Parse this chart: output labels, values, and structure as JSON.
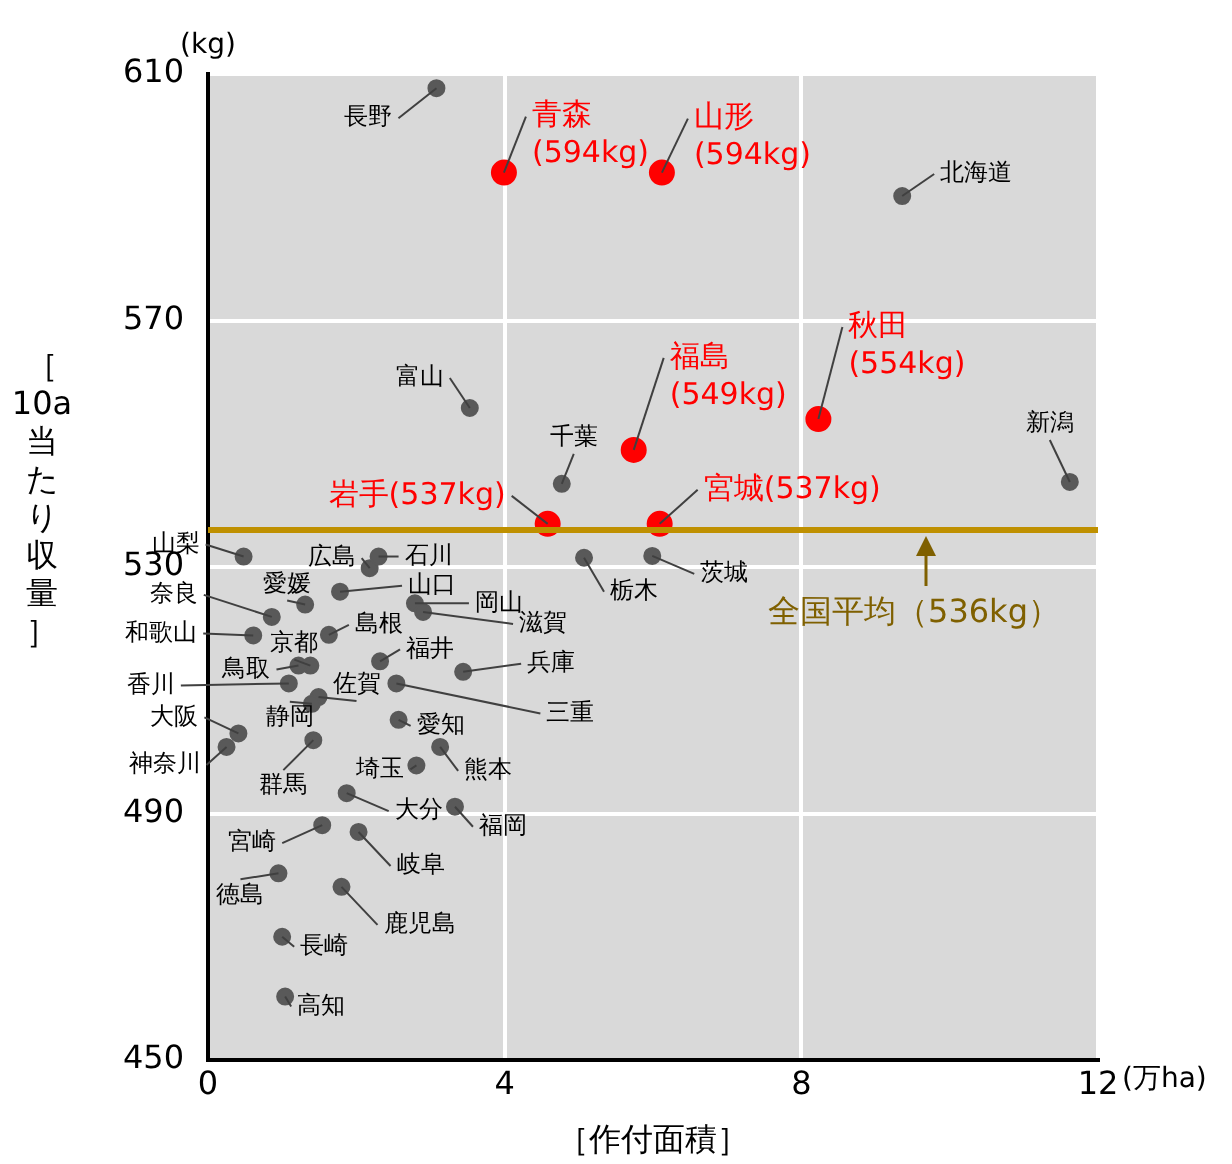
{
  "chart_data": {
    "type": "scatter",
    "xlabel": "［作付面積］",
    "ylabel": "［10a当たり収量］",
    "xlim": [
      0,
      12
    ],
    "xticks": [
      0,
      4,
      8,
      12
    ],
    "ylim": [
      450,
      610
    ],
    "yticks": [
      450,
      490,
      530,
      570,
      610
    ],
    "grid": true,
    "legend": false,
    "marker": "circle",
    "series": [
      {
        "color": "#ff0000",
        "x": [
          3.99,
          6.12,
          8.23,
          5.74,
          4.58,
          6.09
        ],
        "values": [
          594,
          594,
          554,
          549,
          537,
          537
        ]
      },
      {
        "color": "#595959",
        "x": [
          3.08,
          9.36,
          3.53,
          4.77,
          11.62,
          5.99,
          5.07,
          0.48,
          2.18,
          2.3,
          1.78,
          1.31,
          0.86,
          2.79,
          2.9,
          0.61,
          1.63,
          1.38,
          1.22,
          2.32,
          3.44,
          1.09,
          2.54,
          1.49,
          1.4,
          2.57,
          0.41,
          3.13,
          0.25,
          1.42,
          2.81,
          1.87,
          3.33,
          1.54,
          2.03,
          0.95,
          1.8,
          1.0,
          1.04
        ],
        "values": [
          607.7,
          590.2,
          555.8,
          543.5,
          543.8,
          531.8,
          531.5,
          531.7,
          529.8,
          531.7,
          526.0,
          523.9,
          521.9,
          524.1,
          522.7,
          518.9,
          519.0,
          514.0,
          514.0,
          514.7,
          513.0,
          511.1,
          511.1,
          508.9,
          507.8,
          505.2,
          503.0,
          500.8,
          500.8,
          501.9,
          497.8,
          493.3,
          491.1,
          488.1,
          487.0,
          480.3,
          478.1,
          470.0,
          460.3
        ]
      }
    ],
    "ref_lines": [
      {
        "axis": "y",
        "value": 536,
        "label": "全国平均（536kg）",
        "color": "#bf9000"
      }
    ],
    "annotations": [
      {
        "text": "青森(594kg)",
        "x": 3.99,
        "y": 594
      },
      {
        "text": "山形(594kg)",
        "x": 6.12,
        "y": 594
      },
      {
        "text": "秋田(554kg)",
        "x": 8.23,
        "y": 554
      },
      {
        "text": "福島(549kg)",
        "x": 5.74,
        "y": 549
      },
      {
        "text": "岩手(537kg)",
        "x": 4.58,
        "y": 537
      },
      {
        "text": "宮城(537kg)",
        "x": 6.09,
        "y": 537
      },
      {
        "text": "長野",
        "x": 3.08,
        "y": 607.7
      },
      {
        "text": "北海道",
        "x": 9.36,
        "y": 590.2
      },
      {
        "text": "富山",
        "x": 3.53,
        "y": 555.8
      },
      {
        "text": "千葉",
        "x": 4.77,
        "y": 543.5
      },
      {
        "text": "新潟",
        "x": 11.62,
        "y": 543.8
      },
      {
        "text": "茨城",
        "x": 5.99,
        "y": 531.8
      },
      {
        "text": "栃木",
        "x": 5.07,
        "y": 531.5
      },
      {
        "text": "山梨",
        "x": 0.48,
        "y": 531.7
      },
      {
        "text": "広島",
        "x": 2.18,
        "y": 529.8
      },
      {
        "text": "石川",
        "x": 2.3,
        "y": 531.7
      },
      {
        "text": "山口",
        "x": 1.78,
        "y": 526.0
      },
      {
        "text": "愛媛",
        "x": 1.31,
        "y": 523.9
      },
      {
        "text": "奈良",
        "x": 0.86,
        "y": 521.9
      },
      {
        "text": "岡山",
        "x": 2.79,
        "y": 524.1
      },
      {
        "text": "滋賀",
        "x": 2.9,
        "y": 522.7
      },
      {
        "text": "和歌山",
        "x": 0.61,
        "y": 518.9
      },
      {
        "text": "島根",
        "x": 1.63,
        "y": 519.0
      },
      {
        "text": "京都",
        "x": 1.38,
        "y": 514.0
      },
      {
        "text": "鳥取",
        "x": 1.22,
        "y": 514.0
      },
      {
        "text": "福井",
        "x": 2.32,
        "y": 514.7
      },
      {
        "text": "兵庫",
        "x": 3.44,
        "y": 513.0
      },
      {
        "text": "香川",
        "x": 1.09,
        "y": 511.1
      },
      {
        "text": "三重",
        "x": 2.54,
        "y": 511.1
      },
      {
        "text": "佐賀",
        "x": 1.49,
        "y": 508.9
      },
      {
        "text": "静岡",
        "x": 1.4,
        "y": 507.8
      },
      {
        "text": "愛知",
        "x": 2.57,
        "y": 505.2
      },
      {
        "text": "大阪",
        "x": 0.41,
        "y": 503.0
      },
      {
        "text": "熊本",
        "x": 3.13,
        "y": 500.8
      },
      {
        "text": "神奈川",
        "x": 0.25,
        "y": 500.8
      },
      {
        "text": "群馬",
        "x": 1.42,
        "y": 501.9
      },
      {
        "text": "埼玉",
        "x": 2.81,
        "y": 497.8
      },
      {
        "text": "大分",
        "x": 1.87,
        "y": 493.3
      },
      {
        "text": "福岡",
        "x": 3.33,
        "y": 491.1
      },
      {
        "text": "宮崎",
        "x": 1.54,
        "y": 488.1
      },
      {
        "text": "岐阜",
        "x": 2.03,
        "y": 487.0
      },
      {
        "text": "徳島",
        "x": 0.95,
        "y": 480.3
      },
      {
        "text": "鹿児島",
        "x": 1.8,
        "y": 478.1
      },
      {
        "text": "長崎",
        "x": 1.0,
        "y": 470.0
      },
      {
        "text": "高知",
        "x": 1.04,
        "y": 460.3
      },
      "(kg)",
      "(万ha)"
    ]
  }
}
